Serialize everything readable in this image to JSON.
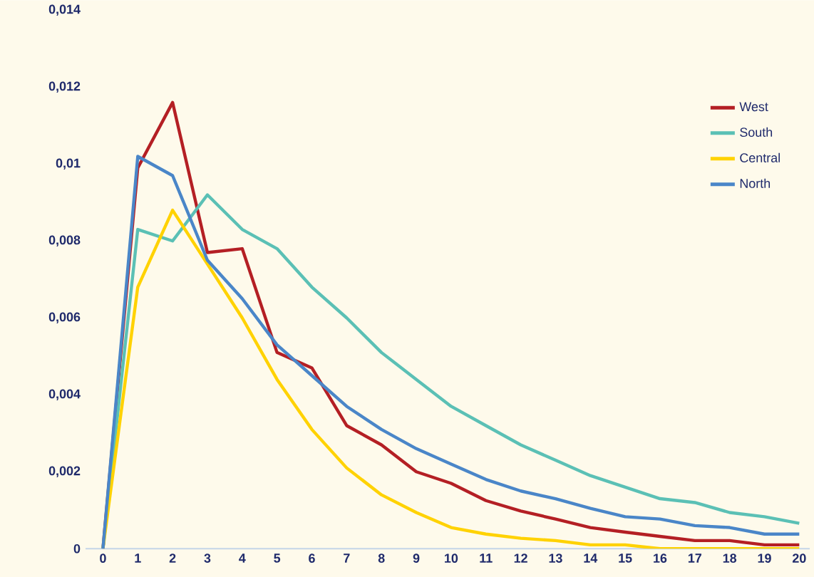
{
  "chart_data": {
    "type": "line",
    "x": [
      0,
      1,
      2,
      3,
      4,
      5,
      6,
      7,
      8,
      9,
      10,
      11,
      12,
      13,
      14,
      15,
      16,
      17,
      18,
      19,
      20
    ],
    "series": [
      {
        "name": "West",
        "color": "#b41f24",
        "values": [
          0,
          0.0099,
          0.0116,
          0.0077,
          0.0078,
          0.0051,
          0.0047,
          0.0032,
          0.0027,
          0.002,
          0.0017,
          0.00125,
          0.00098,
          0.00077,
          0.00055,
          0.00043,
          0.00032,
          0.00021,
          0.00021,
          0.0001,
          0.0001
        ]
      },
      {
        "name": "South",
        "color": "#5bc0b5",
        "values": [
          0,
          0.0083,
          0.008,
          0.0092,
          0.0083,
          0.0078,
          0.0068,
          0.006,
          0.0051,
          0.0044,
          0.0037,
          0.0032,
          0.0027,
          0.0023,
          0.0019,
          0.0016,
          0.0013,
          0.0012,
          0.00094,
          0.00083,
          0.00066
        ]
      },
      {
        "name": "Central",
        "color": "#ffd200",
        "values": [
          0,
          0.0068,
          0.0088,
          0.0074,
          0.006,
          0.0044,
          0.0031,
          0.0021,
          0.0014,
          0.00094,
          0.00055,
          0.00038,
          0.00027,
          0.00021,
          0.0001,
          0.0001,
          0,
          0,
          0,
          0,
          0
        ]
      },
      {
        "name": "North",
        "color": "#4a86c8",
        "values": [
          0,
          0.0102,
          0.0097,
          0.0075,
          0.0065,
          0.0053,
          0.0045,
          0.0037,
          0.0031,
          0.0026,
          0.0022,
          0.0018,
          0.0015,
          0.0013,
          0.00105,
          0.00083,
          0.00077,
          0.0006,
          0.00055,
          0.00038,
          0.00038
        ]
      }
    ],
    "xlim": [
      -0.5,
      20.3
    ],
    "xticks": [
      0,
      1,
      2,
      3,
      4,
      5,
      6,
      7,
      8,
      9,
      10,
      11,
      12,
      13,
      14,
      15,
      16,
      17,
      18,
      19,
      20
    ],
    "ylim": [
      0,
      0.014
    ],
    "yticks": [
      0,
      {
        "value": 0.002,
        "label": "0,002"
      },
      {
        "value": 0.004,
        "label": "0,004"
      },
      {
        "value": 0.006,
        "label": "0,006"
      },
      {
        "value": 0.008,
        "label": "0,008"
      },
      {
        "value": 0.01,
        "label": "0,01"
      },
      {
        "value": 0.012,
        "label": "0,012"
      },
      {
        "value": 0.014,
        "label": "0,014"
      }
    ],
    "grid": false,
    "legend": "top right",
    "marker": "none",
    "line_style": "solid"
  }
}
